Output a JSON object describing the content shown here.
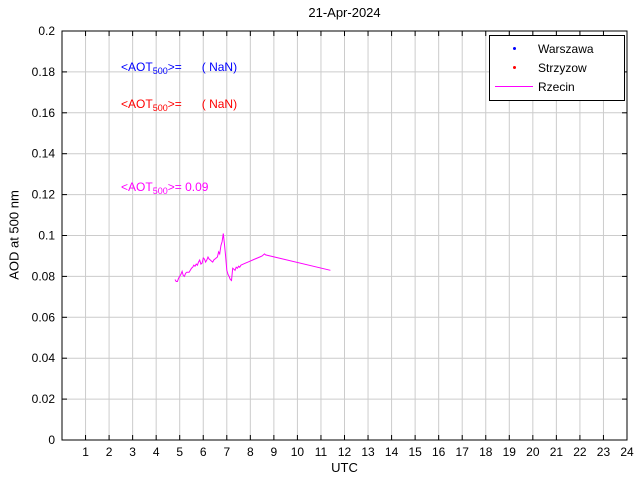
{
  "chart_data": {
    "type": "line",
    "title": "21-Apr-2024",
    "xlabel": "UTC",
    "ylabel": "AOD at 500 nm",
    "xlim": [
      0,
      24
    ],
    "ylim": [
      0,
      0.2
    ],
    "grid": true,
    "xticks": [
      1,
      2,
      3,
      4,
      5,
      6,
      7,
      8,
      9,
      10,
      11,
      12,
      13,
      14,
      15,
      16,
      17,
      18,
      19,
      20,
      21,
      22,
      23,
      24
    ],
    "xtick_labels": [
      "1",
      "2",
      "3",
      "4",
      "5",
      "6",
      "7",
      "8",
      "9",
      "10",
      "11",
      "12",
      "13",
      "14",
      "15",
      "16",
      "17",
      "18",
      "19",
      "20",
      "21",
      "22",
      "23",
      "24"
    ],
    "yticks": [
      0,
      0.02,
      0.04,
      0.06,
      0.08,
      0.1,
      0.12,
      0.14,
      0.16,
      0.18,
      0.2
    ],
    "ytick_labels": [
      "0",
      "0.02",
      "0.04",
      "0.06",
      "0.08",
      "0.1",
      "0.12",
      "0.14",
      "0.16",
      "0.18",
      "0.2"
    ],
    "legend_position": "top-right",
    "series": [
      {
        "name": "Warszawa",
        "color": "#0000ff",
        "marker": "point",
        "x": [],
        "y": []
      },
      {
        "name": "Strzyzow",
        "color": "#ff0000",
        "marker": "point",
        "x": [],
        "y": []
      },
      {
        "name": "Rzecin",
        "color": "#ff00ff",
        "marker": "line",
        "x": [
          4.8,
          4.85,
          4.9,
          4.95,
          5.0,
          5.05,
          5.1,
          5.15,
          5.2,
          5.25,
          5.3,
          5.4,
          5.5,
          5.55,
          5.6,
          5.65,
          5.7,
          5.75,
          5.8,
          5.85,
          5.9,
          5.95,
          6.0,
          6.05,
          6.1,
          6.15,
          6.2,
          6.25,
          6.3,
          6.35,
          6.4,
          6.45,
          6.5,
          6.55,
          6.6,
          6.65,
          6.7,
          6.75,
          6.8,
          6.85,
          6.9,
          6.95,
          7.0,
          7.05,
          7.1,
          7.15,
          7.2,
          7.25,
          7.3,
          7.35,
          7.4,
          7.45,
          7.5,
          7.55,
          7.6,
          7.7,
          7.8,
          7.9,
          8.0,
          8.1,
          8.2,
          8.3,
          8.4,
          8.5,
          8.6,
          8.65,
          11.4
        ],
        "y": [
          0.0785,
          0.0775,
          0.0775,
          0.079,
          0.08,
          0.081,
          0.0825,
          0.0805,
          0.08,
          0.0815,
          0.082,
          0.082,
          0.084,
          0.0845,
          0.0855,
          0.085,
          0.086,
          0.0855,
          0.087,
          0.088,
          0.086,
          0.0865,
          0.089,
          0.0885,
          0.087,
          0.088,
          0.0895,
          0.0885,
          0.088,
          0.0875,
          0.087,
          0.088,
          0.0885,
          0.089,
          0.0895,
          0.092,
          0.091,
          0.095,
          0.097,
          0.101,
          0.096,
          0.09,
          0.083,
          0.081,
          0.08,
          0.0785,
          0.078,
          0.084,
          0.0835,
          0.083,
          0.0845,
          0.084,
          0.085,
          0.0845,
          0.0855,
          0.086,
          0.0865,
          0.087,
          0.0875,
          0.088,
          0.0885,
          0.089,
          0.0895,
          0.09,
          0.091,
          0.0905,
          0.083
        ]
      }
    ],
    "annotations": [
      {
        "pre": "<AOT",
        "sub": "500",
        "post": ">=",
        "value": "      ( NaN)",
        "color": "#0000ff",
        "x": 2.5,
        "y": 0.182
      },
      {
        "pre": "<AOT",
        "sub": "500",
        "post": ">=",
        "value": "      ( NaN)",
        "color": "#ff0000",
        "x": 2.5,
        "y": 0.164
      },
      {
        "pre": "<AOT",
        "sub": "500",
        "post": ">=",
        "value": " 0.09",
        "color": "#ff00ff",
        "x": 2.5,
        "y": 0.123
      }
    ]
  }
}
